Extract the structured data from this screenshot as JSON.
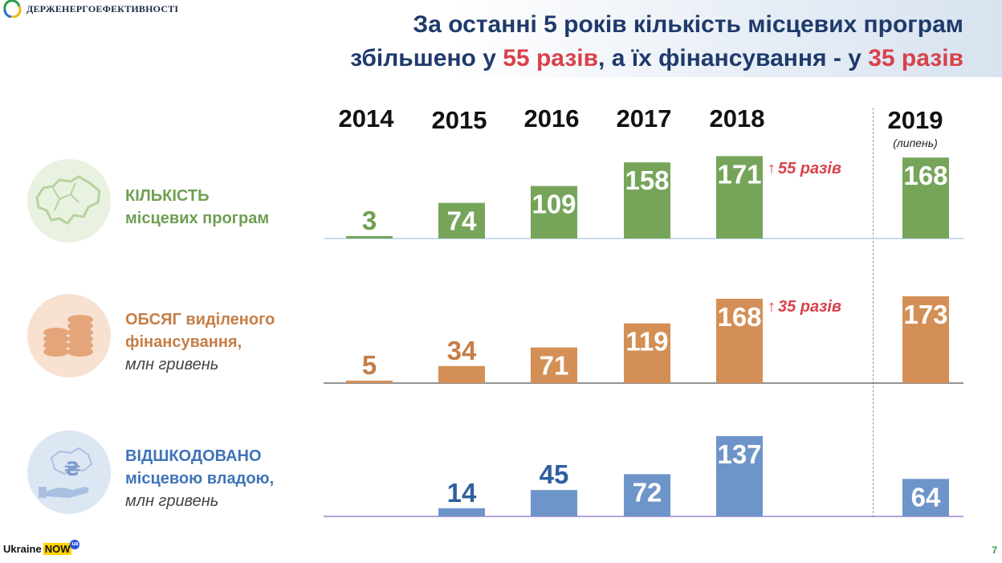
{
  "header": {
    "logo_text": "ДЕРЖЕНЕРГОЕФЕКТИВНОСТІ",
    "title_line1": "За останні 5 років кількість місцевих програм",
    "title_line2_a": "збільшено у ",
    "title_line2_b": "55 разів",
    "title_line2_c": ", а їх фінансування - у ",
    "title_line2_d": "35 разів"
  },
  "chart_data": {
    "type": "bar",
    "categories": [
      "2014",
      "2015",
      "2016",
      "2017",
      "2018",
      "2019"
    ],
    "category_notes": {
      "2019": "(липень)"
    },
    "series": [
      {
        "key": "programs",
        "label_line1": "КІЛЬКІСТЬ",
        "label_line2": "місцевих програм",
        "unit": "",
        "color": "#76a55a",
        "values": [
          3,
          74,
          109,
          158,
          171,
          168
        ],
        "growth_note": "55 разів"
      },
      {
        "key": "funding",
        "label_line1": "ОБСЯГ виділеного",
        "label_line2": "фінансування,",
        "unit": "млн гривень",
        "color": "#d38f56",
        "values": [
          5,
          34,
          71,
          119,
          168,
          173
        ],
        "growth_note": "35 разів"
      },
      {
        "key": "reimbursed",
        "label_line1": "ВІДШКОДОВАНО",
        "label_line2": "місцевою владою,",
        "unit": "млн гривень",
        "color": "#6e95c9",
        "values": [
          null,
          14,
          45,
          72,
          137,
          64
        ]
      }
    ]
  },
  "footer": {
    "brand_text": "Ukraine",
    "brand_now": "NOW",
    "brand_ua": "ua",
    "page_number": "7"
  }
}
